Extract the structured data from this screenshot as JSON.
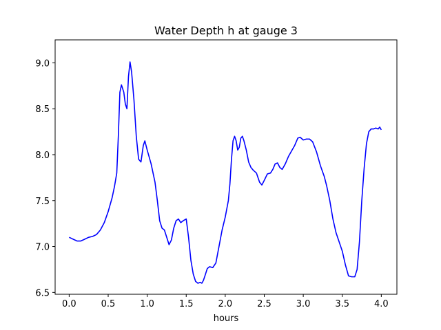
{
  "chart_data": {
    "type": "line",
    "title": "Water Depth h at gauge 3",
    "xlabel": "hours",
    "ylabel": "",
    "xlim": [
      -0.18,
      4.2
    ],
    "ylim": [
      6.48,
      9.25
    ],
    "xticks": [
      0.0,
      0.5,
      1.0,
      1.5,
      2.0,
      2.5,
      3.0,
      3.5,
      4.0
    ],
    "xtick_labels": [
      "0.0",
      "0.5",
      "1.0",
      "1.5",
      "2.0",
      "2.5",
      "3.0",
      "3.5",
      "4.0"
    ],
    "yticks": [
      6.5,
      7.0,
      7.5,
      8.0,
      8.5,
      9.0
    ],
    "ytick_labels": [
      "6.5",
      "7.0",
      "7.5",
      "8.0",
      "8.5",
      "9.0"
    ],
    "grid": false,
    "legend": "none",
    "series": [
      {
        "color": "#0000ff",
        "x": [
          0.0,
          0.05,
          0.1,
          0.15,
          0.2,
          0.25,
          0.3,
          0.35,
          0.4,
          0.45,
          0.5,
          0.55,
          0.58,
          0.61,
          0.63,
          0.65,
          0.67,
          0.7,
          0.72,
          0.74,
          0.76,
          0.78,
          0.8,
          0.83,
          0.86,
          0.89,
          0.92,
          0.95,
          0.97,
          1.0,
          1.05,
          1.1,
          1.13,
          1.16,
          1.19,
          1.22,
          1.25,
          1.28,
          1.31,
          1.34,
          1.37,
          1.4,
          1.43,
          1.46,
          1.5,
          1.53,
          1.56,
          1.59,
          1.62,
          1.65,
          1.68,
          1.7,
          1.72,
          1.74,
          1.77,
          1.8,
          1.84,
          1.88,
          1.92,
          1.96,
          2.0,
          2.04,
          2.06,
          2.08,
          2.1,
          2.12,
          2.14,
          2.16,
          2.18,
          2.2,
          2.22,
          2.24,
          2.27,
          2.3,
          2.33,
          2.36,
          2.4,
          2.44,
          2.47,
          2.5,
          2.54,
          2.58,
          2.61,
          2.64,
          2.67,
          2.7,
          2.73,
          2.77,
          2.81,
          2.85,
          2.89,
          2.93,
          2.96,
          3.0,
          3.04,
          3.08,
          3.12,
          3.17,
          3.22,
          3.27,
          3.3,
          3.34,
          3.38,
          3.42,
          3.46,
          3.5,
          3.54,
          3.58,
          3.62,
          3.66,
          3.69,
          3.72,
          3.75,
          3.78,
          3.81,
          3.84,
          3.87,
          3.9,
          3.93,
          3.96,
          3.98,
          4.0
        ],
        "y": [
          7.1,
          7.08,
          7.06,
          7.06,
          7.08,
          7.1,
          7.11,
          7.13,
          7.18,
          7.26,
          7.38,
          7.53,
          7.65,
          7.8,
          8.2,
          8.68,
          8.76,
          8.68,
          8.55,
          8.5,
          8.85,
          9.01,
          8.9,
          8.6,
          8.2,
          7.95,
          7.92,
          8.1,
          8.15,
          8.05,
          7.9,
          7.7,
          7.5,
          7.28,
          7.2,
          7.18,
          7.1,
          7.02,
          7.07,
          7.2,
          7.28,
          7.3,
          7.26,
          7.28,
          7.3,
          7.1,
          6.85,
          6.7,
          6.62,
          6.6,
          6.61,
          6.6,
          6.63,
          6.68,
          6.76,
          6.78,
          6.77,
          6.82,
          7.0,
          7.18,
          7.32,
          7.5,
          7.68,
          7.95,
          8.15,
          8.2,
          8.15,
          8.05,
          8.08,
          8.18,
          8.2,
          8.15,
          8.05,
          7.92,
          7.86,
          7.83,
          7.8,
          7.7,
          7.67,
          7.72,
          7.79,
          7.8,
          7.84,
          7.9,
          7.91,
          7.86,
          7.84,
          7.9,
          7.98,
          8.04,
          8.1,
          8.18,
          8.19,
          8.16,
          8.17,
          8.17,
          8.14,
          8.03,
          7.88,
          7.76,
          7.66,
          7.5,
          7.3,
          7.15,
          7.05,
          6.95,
          6.8,
          6.68,
          6.67,
          6.67,
          6.75,
          7.05,
          7.5,
          7.85,
          8.12,
          8.25,
          8.28,
          8.28,
          8.29,
          8.28,
          8.3,
          8.27
        ]
      }
    ]
  }
}
